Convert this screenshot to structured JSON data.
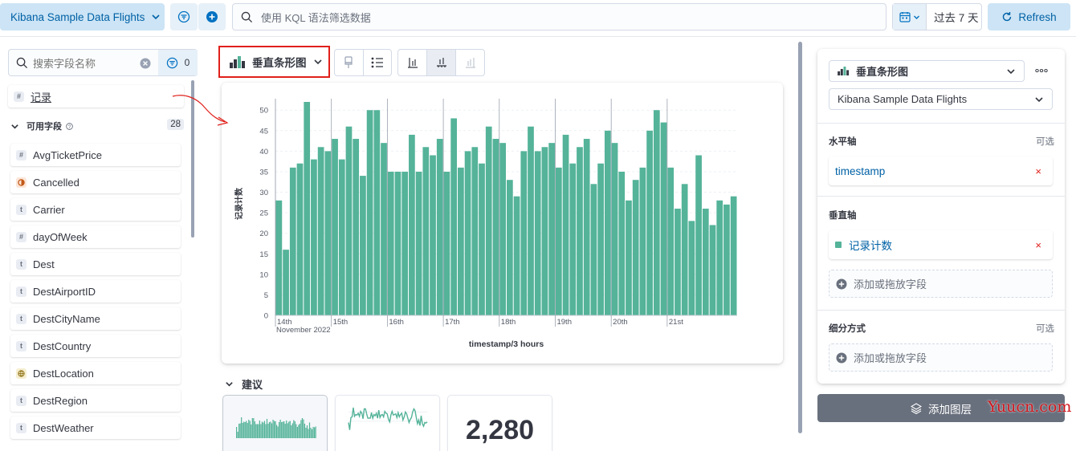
{
  "topbar": {
    "index_pattern": "Kibana Sample Data Flights",
    "kql_placeholder": "使用 KQL 语法筛选数据",
    "date_label": "过去 7 天",
    "refresh_label": "Refresh"
  },
  "sidebar": {
    "search_placeholder": "搜索字段名称",
    "filter_count": "0",
    "records_label": "记录",
    "available_label": "可用字段",
    "available_count": "28",
    "fields": [
      {
        "name": "AvgTicketPrice",
        "type": "#"
      },
      {
        "name": "Cancelled",
        "type": "bool"
      },
      {
        "name": "Carrier",
        "type": "t"
      },
      {
        "name": "dayOfWeek",
        "type": "#"
      },
      {
        "name": "Dest",
        "type": "t"
      },
      {
        "name": "DestAirportID",
        "type": "t"
      },
      {
        "name": "DestCityName",
        "type": "t"
      },
      {
        "name": "DestCountry",
        "type": "t"
      },
      {
        "name": "DestLocation",
        "type": "geo"
      },
      {
        "name": "DestRegion",
        "type": "t"
      },
      {
        "name": "DestWeather",
        "type": "t"
      }
    ]
  },
  "workspace": {
    "chart_type_label": "垂直条形图",
    "suggestions_label": "建议",
    "suggestion_metric": "2,280"
  },
  "chart_data": {
    "type": "bar",
    "xlabel": "timestamp/3 hours",
    "ylabel": "记录计数",
    "ylim": [
      0,
      52
    ],
    "yticks": [
      0,
      5,
      10,
      15,
      20,
      25,
      30,
      35,
      40,
      45,
      50
    ],
    "day_labels": [
      "14th",
      "15th",
      "16th",
      "17th",
      "18th",
      "19th",
      "20th",
      "21st"
    ],
    "first_label_sub": "November 2022",
    "bar_color": "#54b399",
    "values": [
      28,
      16,
      36,
      37,
      52,
      38,
      41,
      40,
      43,
      38,
      46,
      43,
      34,
      50,
      50,
      42,
      35,
      35,
      35,
      44,
      35,
      41,
      39,
      43,
      35,
      48,
      36,
      40,
      41,
      37,
      46,
      43,
      42,
      33,
      29,
      40,
      46,
      40,
      41,
      42,
      36,
      44,
      37,
      41,
      43,
      32,
      37,
      45,
      42,
      35,
      28,
      33,
      36,
      45,
      50,
      47,
      36,
      26,
      32,
      23,
      39,
      26,
      22,
      28,
      27,
      29
    ],
    "color_accent": "#0071c2"
  },
  "config": {
    "chart_type_label": "垂直条形图",
    "datasource_label": "Kibana Sample Data Flights",
    "x_axis_title": "水平轴",
    "x_axis_optional": "可选",
    "x_axis_field": "timestamp",
    "y_axis_title": "垂直轴",
    "y_axis_field": "记录计数",
    "add_field_label": "添加或拖放字段",
    "breakdown_title": "细分方式",
    "breakdown_optional": "可选",
    "add_layer_label": "添加图层"
  },
  "watermark": "Yuucn.com"
}
